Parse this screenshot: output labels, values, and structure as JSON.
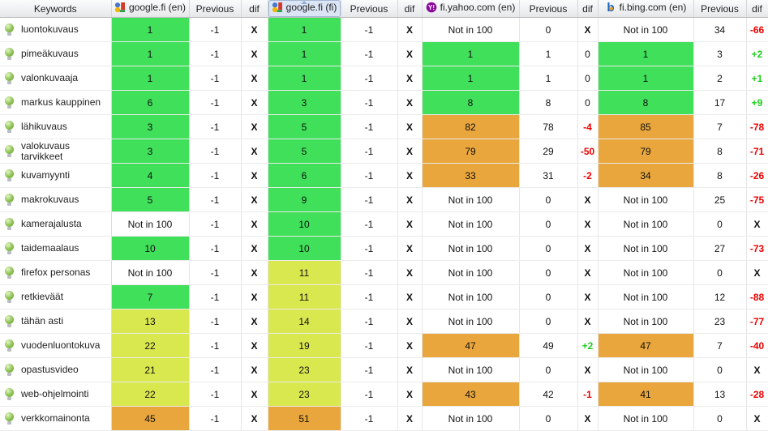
{
  "colors": {
    "rank_green": "#40e05a",
    "rank_yellow": "#d9e84e",
    "rank_orange": "#e9a63c",
    "dif_negative": "#ee0000",
    "dif_positive": "#1dcd1d",
    "dif_blocked": "#111111",
    "dif_zero": "#111111",
    "selected_header_bg": "#dbe5f6"
  },
  "header": {
    "keywords": "Keywords",
    "previous_label": "Previous",
    "dif_label": "dif",
    "engines": [
      {
        "label": "google.fi (en)",
        "icon": "google-icon",
        "selected": false
      },
      {
        "label": "google.fi (fi)",
        "icon": "google-icon",
        "selected": true
      },
      {
        "label": "fi.yahoo.com (en)",
        "icon": "yahoo-icon",
        "selected": false
      },
      {
        "label": "fi.bing.com (en)",
        "icon": "bing-icon",
        "selected": false
      }
    ]
  },
  "not_found_label": "Not in 100",
  "rows": [
    {
      "keyword": "luontokuvaus",
      "cells": [
        {
          "value": "1",
          "tone": "green",
          "previous": "-1",
          "dif": "X",
          "dif_tone": "blocked"
        },
        {
          "value": "1",
          "tone": "green",
          "previous": "-1",
          "dif": "X",
          "dif_tone": "blocked"
        },
        {
          "value": "Not in 100",
          "tone": "none",
          "previous": "0",
          "dif": "X",
          "dif_tone": "blocked"
        },
        {
          "value": "Not in 100",
          "tone": "none",
          "previous": "34",
          "dif": "-66",
          "dif_tone": "negative"
        }
      ]
    },
    {
      "keyword": "pimeäkuvaus",
      "cells": [
        {
          "value": "1",
          "tone": "green",
          "previous": "-1",
          "dif": "X",
          "dif_tone": "blocked"
        },
        {
          "value": "1",
          "tone": "green",
          "previous": "-1",
          "dif": "X",
          "dif_tone": "blocked"
        },
        {
          "value": "1",
          "tone": "green",
          "previous": "1",
          "dif": "0",
          "dif_tone": "zero"
        },
        {
          "value": "1",
          "tone": "green",
          "previous": "3",
          "dif": "+2",
          "dif_tone": "positive"
        }
      ]
    },
    {
      "keyword": "valonkuvaaja",
      "cells": [
        {
          "value": "1",
          "tone": "green",
          "previous": "-1",
          "dif": "X",
          "dif_tone": "blocked"
        },
        {
          "value": "1",
          "tone": "green",
          "previous": "-1",
          "dif": "X",
          "dif_tone": "blocked"
        },
        {
          "value": "1",
          "tone": "green",
          "previous": "1",
          "dif": "0",
          "dif_tone": "zero"
        },
        {
          "value": "1",
          "tone": "green",
          "previous": "2",
          "dif": "+1",
          "dif_tone": "positive"
        }
      ]
    },
    {
      "keyword": "markus kauppinen",
      "cells": [
        {
          "value": "6",
          "tone": "green",
          "previous": "-1",
          "dif": "X",
          "dif_tone": "blocked"
        },
        {
          "value": "3",
          "tone": "green",
          "previous": "-1",
          "dif": "X",
          "dif_tone": "blocked"
        },
        {
          "value": "8",
          "tone": "green",
          "previous": "8",
          "dif": "0",
          "dif_tone": "zero"
        },
        {
          "value": "8",
          "tone": "green",
          "previous": "17",
          "dif": "+9",
          "dif_tone": "positive"
        }
      ]
    },
    {
      "keyword": "lähikuvaus",
      "cells": [
        {
          "value": "3",
          "tone": "green",
          "previous": "-1",
          "dif": "X",
          "dif_tone": "blocked"
        },
        {
          "value": "5",
          "tone": "green",
          "previous": "-1",
          "dif": "X",
          "dif_tone": "blocked"
        },
        {
          "value": "82",
          "tone": "orange",
          "previous": "78",
          "dif": "-4",
          "dif_tone": "negative"
        },
        {
          "value": "85",
          "tone": "orange",
          "previous": "7",
          "dif": "-78",
          "dif_tone": "negative"
        }
      ]
    },
    {
      "keyword": "valokuvaus tarvikkeet",
      "cells": [
        {
          "value": "3",
          "tone": "green",
          "previous": "-1",
          "dif": "X",
          "dif_tone": "blocked"
        },
        {
          "value": "5",
          "tone": "green",
          "previous": "-1",
          "dif": "X",
          "dif_tone": "blocked"
        },
        {
          "value": "79",
          "tone": "orange",
          "previous": "29",
          "dif": "-50",
          "dif_tone": "negative"
        },
        {
          "value": "79",
          "tone": "orange",
          "previous": "8",
          "dif": "-71",
          "dif_tone": "negative"
        }
      ]
    },
    {
      "keyword": "kuvamyynti",
      "cells": [
        {
          "value": "4",
          "tone": "green",
          "previous": "-1",
          "dif": "X",
          "dif_tone": "blocked"
        },
        {
          "value": "6",
          "tone": "green",
          "previous": "-1",
          "dif": "X",
          "dif_tone": "blocked"
        },
        {
          "value": "33",
          "tone": "orange",
          "previous": "31",
          "dif": "-2",
          "dif_tone": "negative"
        },
        {
          "value": "34",
          "tone": "orange",
          "previous": "8",
          "dif": "-26",
          "dif_tone": "negative"
        }
      ]
    },
    {
      "keyword": "makrokuvaus",
      "cells": [
        {
          "value": "5",
          "tone": "green",
          "previous": "-1",
          "dif": "X",
          "dif_tone": "blocked"
        },
        {
          "value": "9",
          "tone": "green",
          "previous": "-1",
          "dif": "X",
          "dif_tone": "blocked"
        },
        {
          "value": "Not in 100",
          "tone": "none",
          "previous": "0",
          "dif": "X",
          "dif_tone": "blocked"
        },
        {
          "value": "Not in 100",
          "tone": "none",
          "previous": "25",
          "dif": "-75",
          "dif_tone": "negative"
        }
      ]
    },
    {
      "keyword": "kamerajalusta",
      "cells": [
        {
          "value": "Not in 100",
          "tone": "none",
          "previous": "-1",
          "dif": "X",
          "dif_tone": "blocked"
        },
        {
          "value": "10",
          "tone": "green",
          "previous": "-1",
          "dif": "X",
          "dif_tone": "blocked"
        },
        {
          "value": "Not in 100",
          "tone": "none",
          "previous": "0",
          "dif": "X",
          "dif_tone": "blocked"
        },
        {
          "value": "Not in 100",
          "tone": "none",
          "previous": "0",
          "dif": "X",
          "dif_tone": "blocked"
        }
      ]
    },
    {
      "keyword": "taidemaalaus",
      "cells": [
        {
          "value": "10",
          "tone": "green",
          "previous": "-1",
          "dif": "X",
          "dif_tone": "blocked"
        },
        {
          "value": "10",
          "tone": "green",
          "previous": "-1",
          "dif": "X",
          "dif_tone": "blocked"
        },
        {
          "value": "Not in 100",
          "tone": "none",
          "previous": "0",
          "dif": "X",
          "dif_tone": "blocked"
        },
        {
          "value": "Not in 100",
          "tone": "none",
          "previous": "27",
          "dif": "-73",
          "dif_tone": "negative"
        }
      ]
    },
    {
      "keyword": "firefox personas",
      "cells": [
        {
          "value": "Not in 100",
          "tone": "none",
          "previous": "-1",
          "dif": "X",
          "dif_tone": "blocked"
        },
        {
          "value": "11",
          "tone": "yellow",
          "previous": "-1",
          "dif": "X",
          "dif_tone": "blocked"
        },
        {
          "value": "Not in 100",
          "tone": "none",
          "previous": "0",
          "dif": "X",
          "dif_tone": "blocked"
        },
        {
          "value": "Not in 100",
          "tone": "none",
          "previous": "0",
          "dif": "X",
          "dif_tone": "blocked"
        }
      ]
    },
    {
      "keyword": "retkieväät",
      "cells": [
        {
          "value": "7",
          "tone": "green",
          "previous": "-1",
          "dif": "X",
          "dif_tone": "blocked"
        },
        {
          "value": "11",
          "tone": "yellow",
          "previous": "-1",
          "dif": "X",
          "dif_tone": "blocked"
        },
        {
          "value": "Not in 100",
          "tone": "none",
          "previous": "0",
          "dif": "X",
          "dif_tone": "blocked"
        },
        {
          "value": "Not in 100",
          "tone": "none",
          "previous": "12",
          "dif": "-88",
          "dif_tone": "negative"
        }
      ]
    },
    {
      "keyword": "tähän asti",
      "cells": [
        {
          "value": "13",
          "tone": "yellow",
          "previous": "-1",
          "dif": "X",
          "dif_tone": "blocked"
        },
        {
          "value": "14",
          "tone": "yellow",
          "previous": "-1",
          "dif": "X",
          "dif_tone": "blocked"
        },
        {
          "value": "Not in 100",
          "tone": "none",
          "previous": "0",
          "dif": "X",
          "dif_tone": "blocked"
        },
        {
          "value": "Not in 100",
          "tone": "none",
          "previous": "23",
          "dif": "-77",
          "dif_tone": "negative"
        }
      ]
    },
    {
      "keyword": "vuodenluontokuva",
      "cells": [
        {
          "value": "22",
          "tone": "yellow",
          "previous": "-1",
          "dif": "X",
          "dif_tone": "blocked"
        },
        {
          "value": "19",
          "tone": "yellow",
          "previous": "-1",
          "dif": "X",
          "dif_tone": "blocked"
        },
        {
          "value": "47",
          "tone": "orange",
          "previous": "49",
          "dif": "+2",
          "dif_tone": "positive"
        },
        {
          "value": "47",
          "tone": "orange",
          "previous": "7",
          "dif": "-40",
          "dif_tone": "negative"
        }
      ]
    },
    {
      "keyword": "opastusvideo",
      "cells": [
        {
          "value": "21",
          "tone": "yellow",
          "previous": "-1",
          "dif": "X",
          "dif_tone": "blocked"
        },
        {
          "value": "23",
          "tone": "yellow",
          "previous": "-1",
          "dif": "X",
          "dif_tone": "blocked"
        },
        {
          "value": "Not in 100",
          "tone": "none",
          "previous": "0",
          "dif": "X",
          "dif_tone": "blocked"
        },
        {
          "value": "Not in 100",
          "tone": "none",
          "previous": "0",
          "dif": "X",
          "dif_tone": "blocked"
        }
      ]
    },
    {
      "keyword": "web-ohjelmointi",
      "cells": [
        {
          "value": "22",
          "tone": "yellow",
          "previous": "-1",
          "dif": "X",
          "dif_tone": "blocked"
        },
        {
          "value": "23",
          "tone": "yellow",
          "previous": "-1",
          "dif": "X",
          "dif_tone": "blocked"
        },
        {
          "value": "43",
          "tone": "orange",
          "previous": "42",
          "dif": "-1",
          "dif_tone": "negative"
        },
        {
          "value": "41",
          "tone": "orange",
          "previous": "13",
          "dif": "-28",
          "dif_tone": "negative"
        }
      ]
    },
    {
      "keyword": "verkkomainonta",
      "cells": [
        {
          "value": "45",
          "tone": "orange",
          "previous": "-1",
          "dif": "X",
          "dif_tone": "blocked"
        },
        {
          "value": "51",
          "tone": "orange",
          "previous": "-1",
          "dif": "X",
          "dif_tone": "blocked"
        },
        {
          "value": "Not in 100",
          "tone": "none",
          "previous": "0",
          "dif": "X",
          "dif_tone": "blocked"
        },
        {
          "value": "Not in 100",
          "tone": "none",
          "previous": "0",
          "dif": "X",
          "dif_tone": "blocked"
        }
      ]
    }
  ]
}
